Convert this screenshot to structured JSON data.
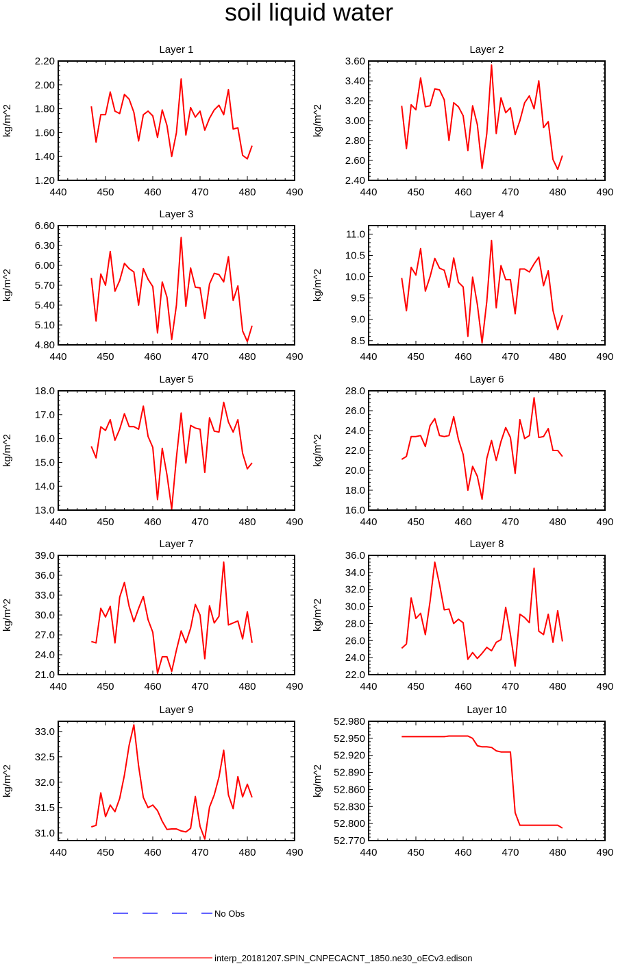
{
  "page": {
    "title": "soil liquid water"
  },
  "legend": [
    {
      "label": "No Obs",
      "color": "#0000ff",
      "style": "dashed"
    },
    {
      "label": "interp_20181207.SPIN_CNPECACNT_1850.ne30_oECv3.edison",
      "color": "#ff0000",
      "style": "solid"
    }
  ],
  "chart_data": [
    {
      "type": "line",
      "title": "Layer 1",
      "ylabel": "kg/m^2",
      "xlim": [
        440,
        490
      ],
      "ylim": [
        1.2,
        2.2
      ],
      "xticks": [
        "440",
        "450",
        "460",
        "470",
        "480",
        "490"
      ],
      "yticks": [
        "1.20",
        "1.40",
        "1.60",
        "1.80",
        "2.00",
        "2.20"
      ],
      "series": [
        {
          "name": "interp_20181207.SPIN_CNPECACNT_1850.ne30_oECv3.edison",
          "color": "#ff0000",
          "x": [
            447,
            448,
            449,
            450,
            451,
            452,
            453,
            454,
            455,
            456,
            457,
            458,
            459,
            460,
            461,
            462,
            463,
            464,
            465,
            466,
            467,
            468,
            469,
            470,
            471,
            472,
            473,
            474,
            475,
            476,
            477,
            478,
            479,
            480,
            481
          ],
          "y": [
            1.82,
            1.52,
            1.75,
            1.75,
            1.94,
            1.78,
            1.76,
            1.92,
            1.88,
            1.77,
            1.53,
            1.75,
            1.78,
            1.74,
            1.56,
            1.79,
            1.66,
            1.4,
            1.6,
            2.05,
            1.58,
            1.81,
            1.73,
            1.78,
            1.62,
            1.72,
            1.79,
            1.83,
            1.75,
            1.96,
            1.63,
            1.64,
            1.41,
            1.38,
            1.49
          ]
        }
      ]
    },
    {
      "type": "line",
      "title": "Layer 2",
      "ylabel": "kg/m^2",
      "xlim": [
        440,
        490
      ],
      "ylim": [
        2.4,
        3.6
      ],
      "xticks": [
        "440",
        "450",
        "460",
        "470",
        "480",
        "490"
      ],
      "yticks": [
        "2.40",
        "2.60",
        "2.80",
        "3.00",
        "3.20",
        "3.40",
        "3.60"
      ],
      "series": [
        {
          "name": "interp_20181207.SPIN_CNPECACNT_1850.ne30_oECv3.edison",
          "color": "#ff0000",
          "x": [
            447,
            448,
            449,
            450,
            451,
            452,
            453,
            454,
            455,
            456,
            457,
            458,
            459,
            460,
            461,
            462,
            463,
            464,
            465,
            466,
            467,
            468,
            469,
            470,
            471,
            472,
            473,
            474,
            475,
            476,
            477,
            478,
            479,
            480,
            481
          ],
          "y": [
            3.15,
            2.72,
            3.16,
            3.11,
            3.43,
            3.14,
            3.15,
            3.32,
            3.31,
            3.21,
            2.8,
            3.18,
            3.14,
            3.05,
            2.7,
            3.15,
            2.96,
            2.52,
            2.87,
            3.56,
            2.87,
            3.23,
            3.08,
            3.13,
            2.86,
            3.0,
            3.18,
            3.25,
            3.12,
            3.4,
            2.93,
            2.99,
            2.61,
            2.51,
            2.65
          ]
        }
      ]
    },
    {
      "type": "line",
      "title": "Layer 3",
      "ylabel": "kg/m^2",
      "xlim": [
        440,
        490
      ],
      "ylim": [
        4.8,
        6.6
      ],
      "xticks": [
        "440",
        "450",
        "460",
        "470",
        "480",
        "490"
      ],
      "yticks": [
        "4.80",
        "5.10",
        "5.40",
        "5.70",
        "6.00",
        "6.30",
        "6.60"
      ],
      "series": [
        {
          "name": "interp_20181207.SPIN_CNPECACNT_1850.ne30_oECv3.edison",
          "color": "#ff0000",
          "x": [
            447,
            448,
            449,
            450,
            451,
            452,
            453,
            454,
            455,
            456,
            457,
            458,
            459,
            460,
            461,
            462,
            463,
            464,
            465,
            466,
            467,
            468,
            469,
            470,
            471,
            472,
            473,
            474,
            475,
            476,
            477,
            478,
            479,
            480,
            481
          ],
          "y": [
            5.81,
            5.16,
            5.87,
            5.7,
            6.21,
            5.61,
            5.77,
            6.03,
            5.95,
            5.9,
            5.4,
            5.95,
            5.79,
            5.68,
            4.98,
            5.75,
            5.52,
            4.88,
            5.4,
            6.42,
            5.38,
            5.96,
            5.67,
            5.66,
            5.2,
            5.72,
            5.88,
            5.86,
            5.75,
            6.13,
            5.47,
            5.69,
            5.01,
            4.85,
            5.09
          ]
        }
      ]
    },
    {
      "type": "line",
      "title": "Layer 4",
      "ylabel": "kg/m^2",
      "xlim": [
        440,
        490
      ],
      "ylim": [
        8.4,
        11.2
      ],
      "xticks": [
        "440",
        "450",
        "460",
        "470",
        "480",
        "490"
      ],
      "yticks": [
        "8.5",
        "9.0",
        "9.5",
        "10.0",
        "10.5",
        "11.0"
      ],
      "series": [
        {
          "name": "interp_20181207.SPIN_CNPECACNT_1850.ne30_oECv3.edison",
          "color": "#ff0000",
          "x": [
            447,
            448,
            449,
            450,
            451,
            452,
            453,
            454,
            455,
            456,
            457,
            458,
            459,
            460,
            461,
            462,
            463,
            464,
            465,
            466,
            467,
            468,
            469,
            470,
            471,
            472,
            473,
            474,
            475,
            476,
            477,
            478,
            479,
            480,
            481
          ],
          "y": [
            9.97,
            9.2,
            10.22,
            10.04,
            10.66,
            9.66,
            10.0,
            10.43,
            10.2,
            10.15,
            9.75,
            10.44,
            9.87,
            9.76,
            8.6,
            9.99,
            9.35,
            8.45,
            9.42,
            10.85,
            9.27,
            10.26,
            9.93,
            9.93,
            9.13,
            10.18,
            10.18,
            10.11,
            10.3,
            10.46,
            9.79,
            10.14,
            9.21,
            8.76,
            9.1
          ]
        }
      ]
    },
    {
      "type": "line",
      "title": "Layer 5",
      "ylabel": "kg/m^2",
      "xlim": [
        440,
        490
      ],
      "ylim": [
        13.0,
        18.0
      ],
      "xticks": [
        "440",
        "450",
        "460",
        "470",
        "480",
        "490"
      ],
      "yticks": [
        "13.0",
        "14.0",
        "15.0",
        "16.0",
        "17.0",
        "18.0"
      ],
      "series": [
        {
          "name": "interp_20181207.SPIN_CNPECACNT_1850.ne30_oECv3.edison",
          "color": "#ff0000",
          "x": [
            447,
            448,
            449,
            450,
            451,
            452,
            453,
            454,
            455,
            456,
            457,
            458,
            459,
            460,
            461,
            462,
            463,
            464,
            465,
            466,
            467,
            468,
            469,
            470,
            471,
            472,
            473,
            474,
            475,
            476,
            477,
            478,
            479,
            480,
            481
          ],
          "y": [
            15.67,
            15.19,
            16.49,
            16.34,
            16.79,
            15.93,
            16.39,
            17.04,
            16.5,
            16.5,
            16.39,
            17.36,
            16.09,
            15.63,
            13.44,
            15.59,
            14.48,
            13.05,
            15.2,
            17.07,
            14.97,
            16.55,
            16.44,
            16.39,
            14.58,
            16.87,
            16.31,
            16.27,
            17.52,
            16.69,
            16.27,
            16.79,
            15.38,
            14.73,
            14.98
          ]
        }
      ]
    },
    {
      "type": "line",
      "title": "Layer 6",
      "ylabel": "kg/m^2",
      "xlim": [
        440,
        490
      ],
      "ylim": [
        16.0,
        28.0
      ],
      "xticks": [
        "440",
        "450",
        "460",
        "470",
        "480",
        "490"
      ],
      "yticks": [
        "16.0",
        "18.0",
        "20.0",
        "22.0",
        "24.0",
        "26.0",
        "28.0"
      ],
      "series": [
        {
          "name": "interp_20181207.SPIN_CNPECACNT_1850.ne30_oECv3.edison",
          "color": "#ff0000",
          "x": [
            447,
            448,
            449,
            450,
            451,
            452,
            453,
            454,
            455,
            456,
            457,
            458,
            459,
            460,
            461,
            462,
            463,
            464,
            465,
            466,
            467,
            468,
            469,
            470,
            471,
            472,
            473,
            474,
            475,
            476,
            477,
            478,
            479,
            480,
            481
          ],
          "y": [
            21.1,
            21.4,
            23.4,
            23.4,
            23.5,
            22.4,
            24.5,
            25.2,
            23.5,
            23.4,
            23.5,
            25.4,
            23.1,
            21.6,
            18.0,
            20.4,
            19.4,
            17.1,
            21.2,
            23.0,
            21.0,
            22.9,
            24.3,
            23.3,
            19.7,
            25.1,
            23.2,
            23.5,
            27.3,
            23.3,
            23.4,
            24.2,
            22.0,
            22.0,
            21.4
          ]
        }
      ]
    },
    {
      "type": "line",
      "title": "Layer 7",
      "ylabel": "kg/m^2",
      "xlim": [
        440,
        490
      ],
      "ylim": [
        21.0,
        39.0
      ],
      "xticks": [
        "440",
        "450",
        "460",
        "470",
        "480",
        "490"
      ],
      "yticks": [
        "21.0",
        "24.0",
        "27.0",
        "30.0",
        "33.0",
        "36.0",
        "39.0"
      ],
      "series": [
        {
          "name": "interp_20181207.SPIN_CNPECACNT_1850.ne30_oECv3.edison",
          "color": "#ff0000",
          "x": [
            447,
            448,
            449,
            450,
            451,
            452,
            453,
            454,
            455,
            456,
            457,
            458,
            459,
            460,
            461,
            462,
            463,
            464,
            465,
            466,
            467,
            468,
            469,
            470,
            471,
            472,
            473,
            474,
            475,
            476,
            477,
            478,
            479,
            480,
            481
          ],
          "y": [
            26.0,
            25.8,
            31.0,
            29.7,
            31.3,
            25.8,
            32.7,
            34.9,
            31.3,
            29.0,
            31.0,
            32.8,
            29.3,
            27.4,
            21.2,
            23.7,
            23.7,
            21.5,
            24.7,
            27.6,
            25.8,
            28.0,
            31.6,
            30.0,
            23.4,
            31.4,
            28.8,
            29.8,
            38.0,
            28.5,
            28.8,
            29.1,
            26.4,
            30.5,
            25.8
          ]
        }
      ]
    },
    {
      "type": "line",
      "title": "Layer 8",
      "ylabel": "kg/m^2",
      "xlim": [
        440,
        490
      ],
      "ylim": [
        22.0,
        36.0
      ],
      "xticks": [
        "440",
        "450",
        "460",
        "470",
        "480",
        "490"
      ],
      "yticks": [
        "22.0",
        "24.0",
        "26.0",
        "28.0",
        "30.0",
        "32.0",
        "34.0",
        "36.0"
      ],
      "series": [
        {
          "name": "interp_20181207.SPIN_CNPECACNT_1850.ne30_oECv3.edison",
          "color": "#ff0000",
          "x": [
            447,
            448,
            449,
            450,
            451,
            452,
            453,
            454,
            455,
            456,
            457,
            458,
            459,
            460,
            461,
            462,
            463,
            464,
            465,
            466,
            467,
            468,
            469,
            470,
            471,
            472,
            473,
            474,
            475,
            476,
            477,
            478,
            479,
            480,
            481
          ],
          "y": [
            25.1,
            25.6,
            31.0,
            28.6,
            29.2,
            26.7,
            30.6,
            35.2,
            32.6,
            29.6,
            29.7,
            28.0,
            28.5,
            28.1,
            23.8,
            24.6,
            23.9,
            24.5,
            25.2,
            24.8,
            25.8,
            26.1,
            29.9,
            26.7,
            23.0,
            29.1,
            28.7,
            28.1,
            34.5,
            27.1,
            26.7,
            29.1,
            25.8,
            29.5,
            25.9
          ]
        }
      ]
    },
    {
      "type": "line",
      "title": "Layer 9",
      "ylabel": "kg/m^2",
      "xlim": [
        440,
        490
      ],
      "ylim": [
        30.85,
        33.2
      ],
      "xticks": [
        "440",
        "450",
        "460",
        "470",
        "480",
        "490"
      ],
      "yticks": [
        "31.0",
        "31.5",
        "32.0",
        "32.5",
        "33.0"
      ],
      "series": [
        {
          "name": "interp_20181207.SPIN_CNPECACNT_1850.ne30_oECv3.edison",
          "color": "#ff0000",
          "x": [
            447,
            448,
            449,
            450,
            451,
            452,
            453,
            454,
            455,
            456,
            457,
            458,
            459,
            460,
            461,
            462,
            463,
            464,
            465,
            466,
            467,
            468,
            469,
            470,
            471,
            472,
            473,
            474,
            475,
            476,
            477,
            478,
            479,
            480,
            481
          ],
          "y": [
            31.12,
            31.15,
            31.79,
            31.32,
            31.55,
            31.42,
            31.68,
            32.14,
            32.73,
            33.13,
            32.32,
            31.7,
            31.5,
            31.55,
            31.44,
            31.23,
            31.07,
            31.08,
            31.08,
            31.04,
            31.02,
            31.09,
            31.72,
            31.13,
            30.88,
            31.51,
            31.75,
            32.1,
            32.63,
            31.75,
            31.48,
            32.11,
            31.71,
            31.96,
            31.7
          ]
        }
      ]
    },
    {
      "type": "line",
      "title": "Layer 10",
      "ylabel": "kg/m^2",
      "xlim": [
        440,
        490
      ],
      "ylim": [
        52.77,
        52.98
      ],
      "xticks": [
        "440",
        "450",
        "460",
        "470",
        "480",
        "490"
      ],
      "yticks": [
        "52.770",
        "52.800",
        "52.830",
        "52.860",
        "52.890",
        "52.920",
        "52.950",
        "52.980"
      ],
      "series": [
        {
          "name": "interp_20181207.SPIN_CNPECACNT_1850.ne30_oECv3.edison",
          "color": "#ff0000",
          "x": [
            447,
            448,
            449,
            450,
            451,
            452,
            453,
            454,
            455,
            456,
            457,
            458,
            459,
            460,
            461,
            462,
            463,
            464,
            465,
            466,
            467,
            468,
            469,
            470,
            471,
            472,
            473,
            474,
            475,
            476,
            477,
            478,
            479,
            480,
            481
          ],
          "y": [
            52.953,
            52.953,
            52.953,
            52.953,
            52.953,
            52.953,
            52.953,
            52.953,
            52.953,
            52.953,
            52.954,
            52.954,
            52.954,
            52.954,
            52.954,
            52.95,
            52.937,
            52.935,
            52.935,
            52.934,
            52.928,
            52.926,
            52.926,
            52.926,
            52.819,
            52.797,
            52.797,
            52.797,
            52.797,
            52.797,
            52.797,
            52.797,
            52.797,
            52.797,
            52.792
          ]
        }
      ]
    }
  ]
}
